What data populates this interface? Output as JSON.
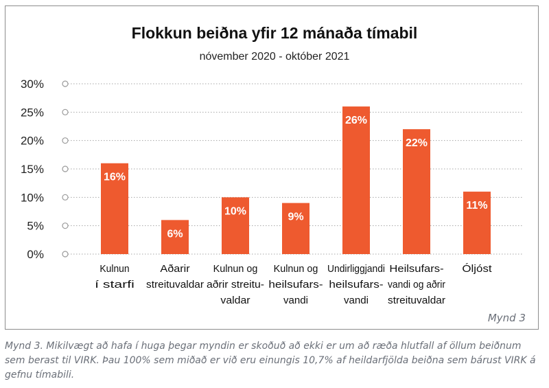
{
  "chart_data": {
    "type": "bar",
    "title": "Flokkun beiðna yfir 12 mánaða tímabil",
    "subtitle": "nóvember 2020 - október 2021",
    "categories": [
      [
        "Kulnun",
        "í starfi"
      ],
      [
        "Aðarir",
        "streituvaldar"
      ],
      [
        "Kulnun og",
        "aðrir streitu-",
        "valdar"
      ],
      [
        "Kulnun og",
        "heilsufars-",
        "vandi"
      ],
      [
        "Undirliggjandi",
        "heilsufars-",
        "vandi"
      ],
      [
        "Heilsufars-",
        "vandi og aðrir",
        "streituvaldar"
      ],
      [
        "Óljóst"
      ]
    ],
    "values": [
      16,
      6,
      10,
      9,
      26,
      22,
      11
    ],
    "value_labels": [
      "16%",
      "6%",
      "10%",
      "9%",
      "26%",
      "22%",
      "11%"
    ],
    "y_ticks": [
      0,
      5,
      10,
      15,
      20,
      25,
      30
    ],
    "y_tick_labels": [
      "0%",
      "5%",
      "10%",
      "15%",
      "20%",
      "25%",
      "30%"
    ],
    "ylim": [
      0,
      30
    ],
    "grid": true,
    "bar_color": "#ee5a2f",
    "figure_tag": "Mynd 3"
  },
  "caption": "Mynd 3. Mikilvægt að hafa í huga þegar myndin er skoðuð að ekki er um að ræða hlutfall af öllum beiðnum sem berast til VIRK. Þau 100% sem miðað er við eru einungis 10,7% af heildarfjölda beiðna sem bárust VIRK á gefnu tímabili."
}
